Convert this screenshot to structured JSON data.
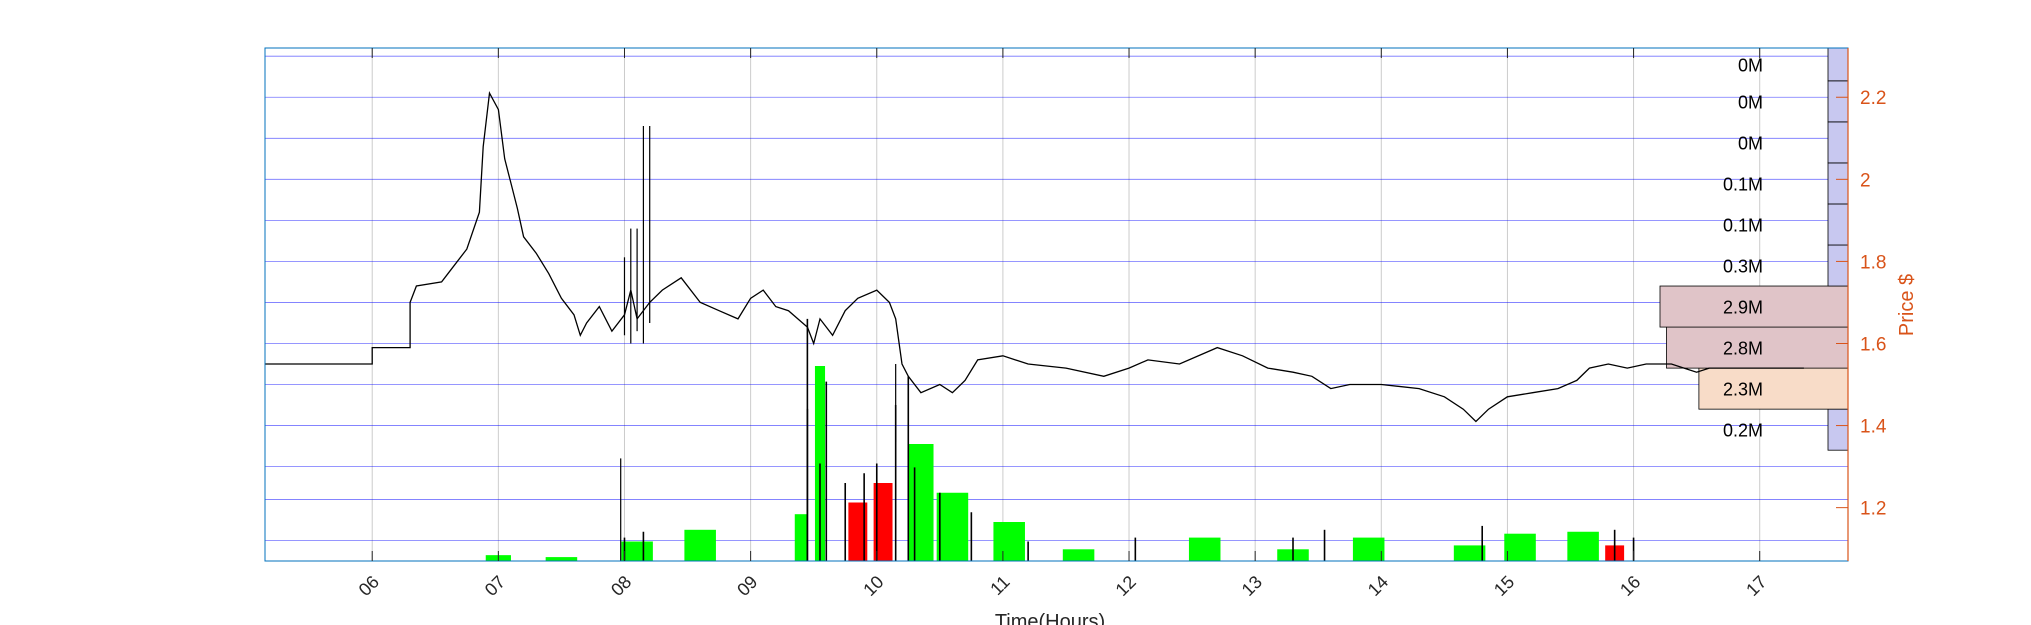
{
  "chart_data": {
    "type": "line",
    "xlabel": "Time(Hours)",
    "ylabel": "Price $",
    "x_ticks": [
      "06",
      "07",
      "08",
      "09",
      "10",
      "11",
      "12",
      "13",
      "14",
      "15",
      "16",
      "17"
    ],
    "xlim": [
      5.15,
      17.7
    ],
    "ylim": [
      1.07,
      2.32
    ],
    "y_ticks": [
      1.2,
      1.4,
      1.6,
      1.8,
      2.0,
      2.2
    ],
    "y_tick_labels": [
      "1.2",
      "1.4",
      "1.6",
      "1.8",
      "2",
      "2.2"
    ],
    "grid": true,
    "colors": {
      "price_line": "#000000",
      "price_axis": "#d95319",
      "grid_h": "#0000ff",
      "grid_v": "#cccccc",
      "volume_up": "#00ff00",
      "volume_down": "#ff0000",
      "profile_low": "#c8c8f0",
      "profile_high": "#e0c4c8",
      "profile_mid": "#f8dcc8"
    },
    "price_series": {
      "name": "",
      "points": [
        [
          5.15,
          1.55
        ],
        [
          6.0,
          1.55
        ],
        [
          6.0,
          1.59
        ],
        [
          6.3,
          1.59
        ],
        [
          6.3,
          1.7
        ],
        [
          6.35,
          1.74
        ],
        [
          6.55,
          1.75
        ],
        [
          6.6,
          1.77
        ],
        [
          6.75,
          1.83
        ],
        [
          6.85,
          1.92
        ],
        [
          6.88,
          2.08
        ],
        [
          6.93,
          2.21
        ],
        [
          7.0,
          2.17
        ],
        [
          7.05,
          2.05
        ],
        [
          7.1,
          1.99
        ],
        [
          7.15,
          1.93
        ],
        [
          7.2,
          1.86
        ],
        [
          7.3,
          1.82
        ],
        [
          7.4,
          1.77
        ],
        [
          7.5,
          1.71
        ],
        [
          7.6,
          1.67
        ],
        [
          7.65,
          1.62
        ],
        [
          7.7,
          1.65
        ],
        [
          7.8,
          1.69
        ],
        [
          7.9,
          1.63
        ],
        [
          8.0,
          1.67
        ],
        [
          8.05,
          1.73
        ],
        [
          8.1,
          1.66
        ],
        [
          8.2,
          1.7
        ],
        [
          8.3,
          1.73
        ],
        [
          8.45,
          1.76
        ],
        [
          8.6,
          1.7
        ],
        [
          8.75,
          1.68
        ],
        [
          8.9,
          1.66
        ],
        [
          9.0,
          1.71
        ],
        [
          9.1,
          1.73
        ],
        [
          9.2,
          1.69
        ],
        [
          9.3,
          1.68
        ],
        [
          9.45,
          1.64
        ],
        [
          9.5,
          1.6
        ],
        [
          9.55,
          1.66
        ],
        [
          9.65,
          1.62
        ],
        [
          9.75,
          1.68
        ],
        [
          9.85,
          1.71
        ],
        [
          10.0,
          1.73
        ],
        [
          10.1,
          1.7
        ],
        [
          10.15,
          1.66
        ],
        [
          10.2,
          1.55
        ],
        [
          10.25,
          1.52
        ],
        [
          10.35,
          1.48
        ],
        [
          10.5,
          1.5
        ],
        [
          10.6,
          1.48
        ],
        [
          10.7,
          1.51
        ],
        [
          10.8,
          1.56
        ],
        [
          11.0,
          1.57
        ],
        [
          11.2,
          1.55
        ],
        [
          11.5,
          1.54
        ],
        [
          11.8,
          1.52
        ],
        [
          12.0,
          1.54
        ],
        [
          12.15,
          1.56
        ],
        [
          12.4,
          1.55
        ],
        [
          12.7,
          1.59
        ],
        [
          12.9,
          1.57
        ],
        [
          13.1,
          1.54
        ],
        [
          13.3,
          1.53
        ],
        [
          13.45,
          1.52
        ],
        [
          13.6,
          1.49
        ],
        [
          13.75,
          1.5
        ],
        [
          14.0,
          1.5
        ],
        [
          14.3,
          1.49
        ],
        [
          14.5,
          1.47
        ],
        [
          14.65,
          1.44
        ],
        [
          14.75,
          1.41
        ],
        [
          14.85,
          1.44
        ],
        [
          15.0,
          1.47
        ],
        [
          15.2,
          1.48
        ],
        [
          15.4,
          1.49
        ],
        [
          15.55,
          1.51
        ],
        [
          15.65,
          1.54
        ],
        [
          15.8,
          1.55
        ],
        [
          15.95,
          1.54
        ],
        [
          16.1,
          1.55
        ],
        [
          16.3,
          1.55
        ],
        [
          16.4,
          1.54
        ],
        [
          16.5,
          1.53
        ],
        [
          16.6,
          1.54
        ],
        [
          17.35,
          1.54
        ]
      ],
      "spikes": [
        [
          8.15,
          1.6,
          2.13
        ],
        [
          8.2,
          1.65,
          2.13
        ],
        [
          8.05,
          1.6,
          1.88
        ],
        [
          8.0,
          1.62,
          1.81
        ],
        [
          8.1,
          1.63,
          1.88
        ]
      ]
    },
    "volume_series": [
      {
        "x": 7.0,
        "vol": 0.03,
        "dir": "up",
        "w": 0.2
      },
      {
        "x": 7.5,
        "vol": 0.02,
        "dir": "up",
        "w": 0.25
      },
      {
        "x": 8.1,
        "vol": 0.1,
        "dir": "up",
        "w": 0.25
      },
      {
        "x": 8.6,
        "vol": 0.16,
        "dir": "up",
        "w": 0.25
      },
      {
        "x": 9.4,
        "vol": 0.24,
        "dir": "up",
        "w": 0.1
      },
      {
        "x": 9.55,
        "vol": 1.0,
        "dir": "up",
        "w": 0.08
      },
      {
        "x": 9.85,
        "vol": 0.3,
        "dir": "down",
        "w": 0.15
      },
      {
        "x": 10.05,
        "vol": 0.4,
        "dir": "down",
        "w": 0.15
      },
      {
        "x": 10.35,
        "vol": 0.6,
        "dir": "up",
        "w": 0.2
      },
      {
        "x": 10.6,
        "vol": 0.35,
        "dir": "up",
        "w": 0.25
      },
      {
        "x": 11.05,
        "vol": 0.2,
        "dir": "up",
        "w": 0.25
      },
      {
        "x": 11.6,
        "vol": 0.06,
        "dir": "up",
        "w": 0.25
      },
      {
        "x": 12.6,
        "vol": 0.12,
        "dir": "up",
        "w": 0.25
      },
      {
        "x": 13.3,
        "vol": 0.06,
        "dir": "up",
        "w": 0.25
      },
      {
        "x": 13.9,
        "vol": 0.12,
        "dir": "up",
        "w": 0.25
      },
      {
        "x": 14.7,
        "vol": 0.08,
        "dir": "up",
        "w": 0.25
      },
      {
        "x": 15.1,
        "vol": 0.14,
        "dir": "up",
        "w": 0.25
      },
      {
        "x": 15.6,
        "vol": 0.15,
        "dir": "up",
        "w": 0.25
      },
      {
        "x": 15.85,
        "vol": 0.08,
        "dir": "down",
        "w": 0.15
      }
    ],
    "volume_profile": {
      "bins": [
        {
          "ymin": 1.34,
          "ymax": 1.44,
          "label": "0.2M",
          "value": 0.2
        },
        {
          "ymin": 1.44,
          "ymax": 1.54,
          "label": "2.3M",
          "value": 2.3
        },
        {
          "ymin": 1.54,
          "ymax": 1.64,
          "label": "2.8M",
          "value": 2.8
        },
        {
          "ymin": 1.64,
          "ymax": 1.74,
          "label": "2.9M",
          "value": 2.9
        },
        {
          "ymin": 1.74,
          "ymax": 1.84,
          "label": "0.3M",
          "value": 0.3
        },
        {
          "ymin": 1.84,
          "ymax": 1.94,
          "label": "0.1M",
          "value": 0.1
        },
        {
          "ymin": 1.94,
          "ymax": 2.04,
          "label": "0.1M",
          "value": 0.1
        },
        {
          "ymin": 2.04,
          "ymax": 2.14,
          "label": "0M",
          "value": 0.0
        },
        {
          "ymin": 2.14,
          "ymax": 2.24,
          "label": "0M",
          "value": 0.0
        },
        {
          "ymin": 2.24,
          "ymax": 2.32,
          "label": "0M",
          "value": 0.0
        }
      ]
    }
  }
}
